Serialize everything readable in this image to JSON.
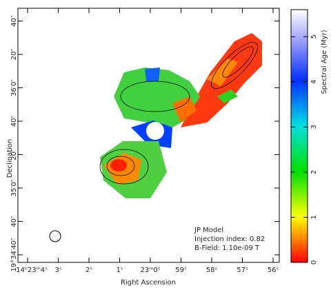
{
  "chart_data": {
    "type": "heatmap",
    "xlabel": "Right Ascension",
    "ylabel": "Declination",
    "x_tick_labels": [
      "14ʰ23ᵐ4ˢ",
      "3ˢ",
      "2ˢ",
      "1ˢ",
      "23ᵐ0ˢ",
      "59ˢ",
      "58ˢ",
      "57ˢ",
      "56ˢ"
    ],
    "y_tick_labels": [
      "19°34′40″",
      "40″",
      "35′0″",
      "20″",
      "40″",
      "36′0″",
      "20″",
      "40″"
    ],
    "annotations": [
      "JP Model",
      "Injection index: 0.82",
      "B-Field: 1.10e-09 T"
    ],
    "colorbar": {
      "label": "Spectral Age (Myr)",
      "lim": [
        0,
        5.6
      ],
      "ticks": [
        0,
        1,
        2,
        3,
        4,
        5
      ]
    }
  }
}
